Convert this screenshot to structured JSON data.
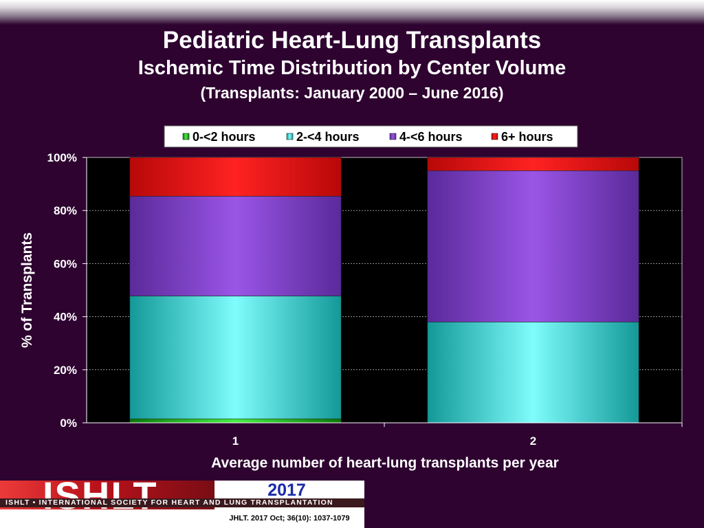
{
  "header": {
    "title": "Pediatric Heart-Lung Transplants",
    "subtitle": "Ischemic Time Distribution by Center Volume",
    "period": "(Transplants: January 2000 – June 2016)"
  },
  "chart_data": {
    "type": "bar",
    "stacked": true,
    "percent": true,
    "categories": [
      "1",
      "2"
    ],
    "series": [
      {
        "name": "0-<2 hours",
        "values": [
          1.5,
          0
        ],
        "color": "#1fc01f"
      },
      {
        "name": "2-<4 hours",
        "values": [
          46.3,
          38
        ],
        "color": "#3fdcdc"
      },
      {
        "name": "4-<6 hours",
        "values": [
          37.6,
          57
        ],
        "color": "#7b3fc8"
      },
      {
        "name": "6+ hours",
        "values": [
          14.6,
          5
        ],
        "color": "#ee1111"
      }
    ],
    "xlabel": "Average number of heart-lung transplants per year",
    "ylabel": "% of Transplants",
    "yticks": [
      "0%",
      "20%",
      "40%",
      "60%",
      "80%",
      "100%"
    ],
    "ylim": [
      0,
      100
    ],
    "grid": true,
    "legend_position": "top"
  },
  "footer": {
    "logo_text": "ISHLT",
    "logo_tagline": "ISHLT • INTERNATIONAL SOCIETY FOR HEART AND LUNG TRANSPLANTATION",
    "year": "2017",
    "citation": "JHLT. 2017 Oct; 36(10): 1037-1079"
  }
}
